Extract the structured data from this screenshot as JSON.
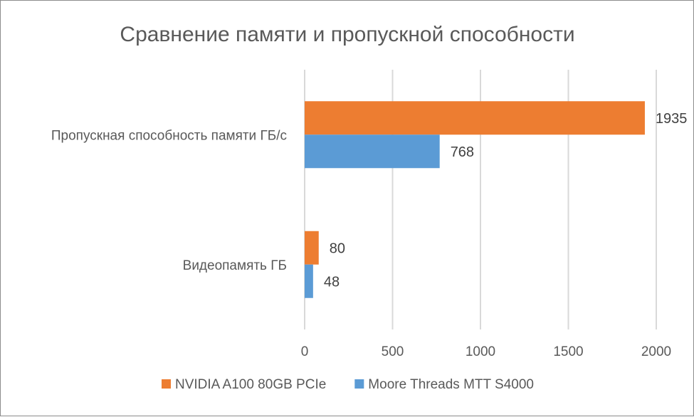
{
  "chart_data": {
    "type": "bar",
    "orientation": "horizontal",
    "title": "Сравнение памяти и пропускной способности",
    "categories": [
      "Пропускная способность памяти ГБ/с",
      "Видеопамять ГБ"
    ],
    "series": [
      {
        "name": "NVIDIA A100 80GB PCIe",
        "color": "#ED7D31",
        "values": [
          1935,
          80
        ]
      },
      {
        "name": "Moore Threads MTT S4000",
        "color": "#5B9BD5",
        "values": [
          768,
          48
        ]
      }
    ],
    "xlim": [
      0,
      2000
    ],
    "xticks": [
      0,
      500,
      1000,
      1500,
      2000
    ],
    "grid": true,
    "legend_position": "bottom"
  }
}
